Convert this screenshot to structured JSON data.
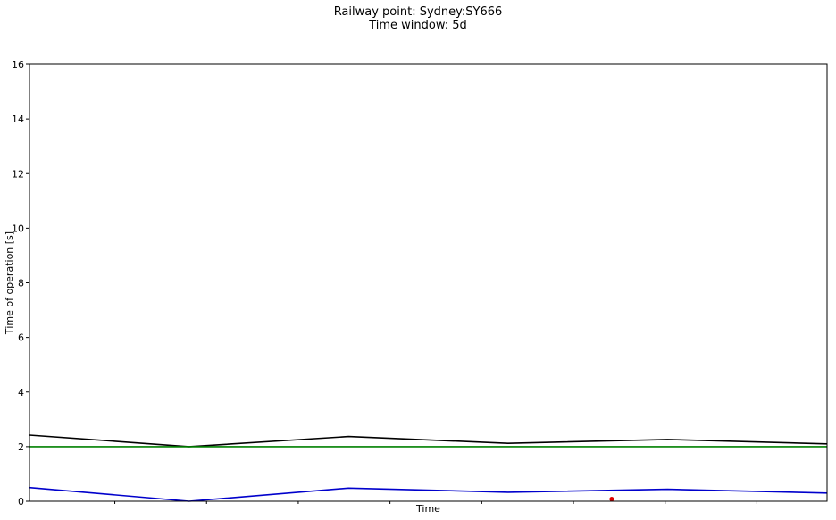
{
  "chart_data": {
    "type": "line",
    "title": "Railway point: Sydney:SY666",
    "subtitle": "Time window: 5d",
    "xlabel": "Time",
    "ylabel": "Time of operation [s]",
    "ylim": [
      0,
      16
    ],
    "yticks": [
      0,
      2,
      4,
      6,
      8,
      10,
      12,
      14,
      16
    ],
    "xlim": [
      0,
      5
    ],
    "xticks_minor": [
      0.535,
      1.11,
      1.685,
      2.26,
      2.835,
      3.41,
      3.985,
      4.56
    ],
    "grid": false,
    "legend": "none",
    "series": [
      {
        "color": "#000000",
        "x": [
          0,
          1,
          2,
          3,
          4,
          5
        ],
        "values": [
          2.42,
          2.0,
          2.37,
          2.12,
          2.26,
          2.1
        ]
      },
      {
        "color": "#008000",
        "x": [
          0,
          1,
          2,
          3,
          4,
          5
        ],
        "values": [
          2.0,
          2.0,
          2.0,
          2.0,
          2.0,
          2.0
        ]
      },
      {
        "color": "#0000cc",
        "x": [
          0,
          1,
          2,
          3,
          4,
          5
        ],
        "values": [
          0.5,
          0.0,
          0.48,
          0.33,
          0.44,
          0.3
        ]
      }
    ],
    "points": [
      {
        "color": "#dd0000",
        "x": 3.65,
        "y": 0.08
      }
    ]
  }
}
